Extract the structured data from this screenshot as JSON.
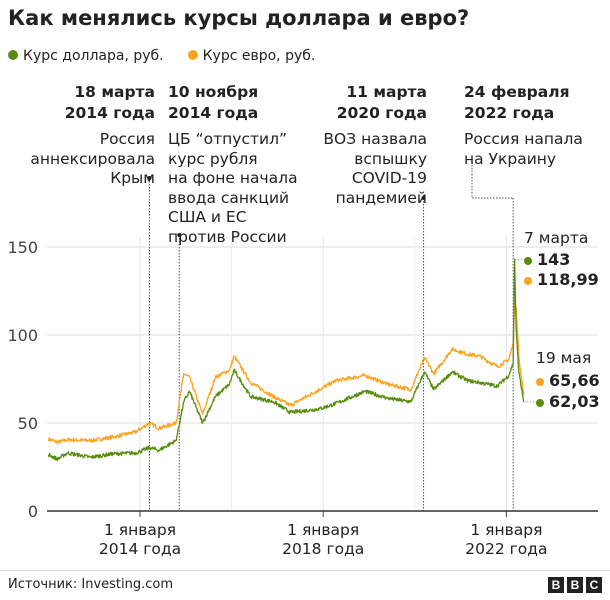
{
  "title": "Как менялись курсы доллара и евро?",
  "legend": [
    {
      "label": "Курс доллара, руб.",
      "color": "#588c0e"
    },
    {
      "label": "Курс евро, руб.",
      "color": "#fca420"
    }
  ],
  "annotations": [
    {
      "date": "2014-03-18",
      "heading": [
        "18 марта",
        "2014 года"
      ],
      "text": [
        "Россия",
        "аннексировала",
        "Крым"
      ]
    },
    {
      "date": "2014-11-10",
      "heading": [
        "10 ноября",
        "2014 года"
      ],
      "text": [
        "ЦБ “отпустил”",
        "курс рубля",
        "на фоне начала",
        "ввода санкций",
        "США и ЕС",
        "против России"
      ]
    },
    {
      "date": "2020-03-11",
      "heading": [
        "11 марта",
        "2020 года"
      ],
      "text": [
        "ВОЗ назвала",
        "вспышку",
        "COVID-19",
        "пандемией"
      ]
    },
    {
      "date": "2022-02-24",
      "heading": [
        "24 февраля",
        "2022 года"
      ],
      "text": [
        "Россия напала",
        "на Украину"
      ]
    }
  ],
  "end_labels": {
    "peak": {
      "date_label": "7 марта",
      "usd": "143",
      "eur": "118,99"
    },
    "last": {
      "date_label": "19 мая",
      "eur": "65,66",
      "usd": "62,03"
    }
  },
  "chart_data": {
    "type": "line",
    "title": "Как менялись курсы доллара и евро?",
    "xlabel": "",
    "ylabel": "",
    "ylim": [
      0,
      150
    ],
    "yticks": [
      "0",
      "50",
      "100",
      "150"
    ],
    "xlim": [
      "2012-01-01",
      "2022-05-19"
    ],
    "xticks": [
      {
        "date": "2014-01-01",
        "label": [
          "1 января",
          "2014 года"
        ]
      },
      {
        "date": "2018-01-01",
        "label": [
          "1 января",
          "2018 года"
        ]
      },
      {
        "date": "2022-01-01",
        "label": [
          "1 января",
          "2022 года"
        ]
      }
    ],
    "grid": true,
    "legend_position": "top-left",
    "series": [
      {
        "name": "Курс доллара, руб.",
        "color": "#588c0e",
        "points": [
          [
            "2012-01-01",
            32
          ],
          [
            "2012-03-15",
            29.5
          ],
          [
            "2012-06-01",
            33
          ],
          [
            "2012-12-01",
            30.5
          ],
          [
            "2013-06-01",
            32.5
          ],
          [
            "2013-12-01",
            33
          ],
          [
            "2014-03-18",
            36
          ],
          [
            "2014-06-01",
            34.5
          ],
          [
            "2014-10-15",
            40
          ],
          [
            "2014-12-16",
            62
          ],
          [
            "2015-01-30",
            68
          ],
          [
            "2015-05-15",
            50
          ],
          [
            "2015-08-25",
            65
          ],
          [
            "2015-12-15",
            72
          ],
          [
            "2016-01-21",
            80
          ],
          [
            "2016-06-01",
            65
          ],
          [
            "2016-12-01",
            62
          ],
          [
            "2017-04-15",
            56
          ],
          [
            "2017-12-01",
            58
          ],
          [
            "2018-04-10",
            61
          ],
          [
            "2018-12-01",
            68
          ],
          [
            "2019-06-01",
            64
          ],
          [
            "2019-12-01",
            62
          ],
          [
            "2020-03-18",
            79
          ],
          [
            "2020-06-01",
            69
          ],
          [
            "2020-10-25",
            79
          ],
          [
            "2021-03-01",
            74
          ],
          [
            "2021-06-01",
            73
          ],
          [
            "2021-10-20",
            71
          ],
          [
            "2022-01-20",
            77
          ],
          [
            "2022-02-24",
            84
          ],
          [
            "2022-03-07",
            143
          ],
          [
            "2022-03-20",
            104
          ],
          [
            "2022-04-10",
            79
          ],
          [
            "2022-05-19",
            62.03
          ]
        ]
      },
      {
        "name": "Курс евро, руб.",
        "color": "#fca420",
        "points": [
          [
            "2012-01-01",
            41
          ],
          [
            "2012-03-15",
            39
          ],
          [
            "2012-06-01",
            40.5
          ],
          [
            "2012-12-01",
            40
          ],
          [
            "2013-06-01",
            42
          ],
          [
            "2013-12-01",
            45
          ],
          [
            "2014-03-18",
            50
          ],
          [
            "2014-06-01",
            47
          ],
          [
            "2014-10-15",
            50
          ],
          [
            "2014-12-16",
            78
          ],
          [
            "2015-01-30",
            76
          ],
          [
            "2015-05-15",
            55
          ],
          [
            "2015-08-25",
            76
          ],
          [
            "2015-12-15",
            80
          ],
          [
            "2016-01-21",
            88
          ],
          [
            "2016-06-01",
            73
          ],
          [
            "2016-12-01",
            65
          ],
          [
            "2017-04-15",
            60
          ],
          [
            "2017-12-01",
            69
          ],
          [
            "2018-04-10",
            74
          ],
          [
            "2018-12-01",
            77
          ],
          [
            "2019-06-01",
            72
          ],
          [
            "2019-12-01",
            69
          ],
          [
            "2020-03-18",
            87
          ],
          [
            "2020-06-01",
            78
          ],
          [
            "2020-10-25",
            92
          ],
          [
            "2021-03-01",
            89
          ],
          [
            "2021-06-01",
            88
          ],
          [
            "2021-10-20",
            82
          ],
          [
            "2022-01-20",
            86
          ],
          [
            "2022-02-24",
            95
          ],
          [
            "2022-03-07",
            118.99
          ],
          [
            "2022-03-20",
            115
          ],
          [
            "2022-04-10",
            88
          ],
          [
            "2022-05-19",
            65.66
          ]
        ]
      }
    ]
  },
  "footer": {
    "source": "Источник: Investing.com",
    "logo": [
      "B",
      "B",
      "C"
    ]
  }
}
